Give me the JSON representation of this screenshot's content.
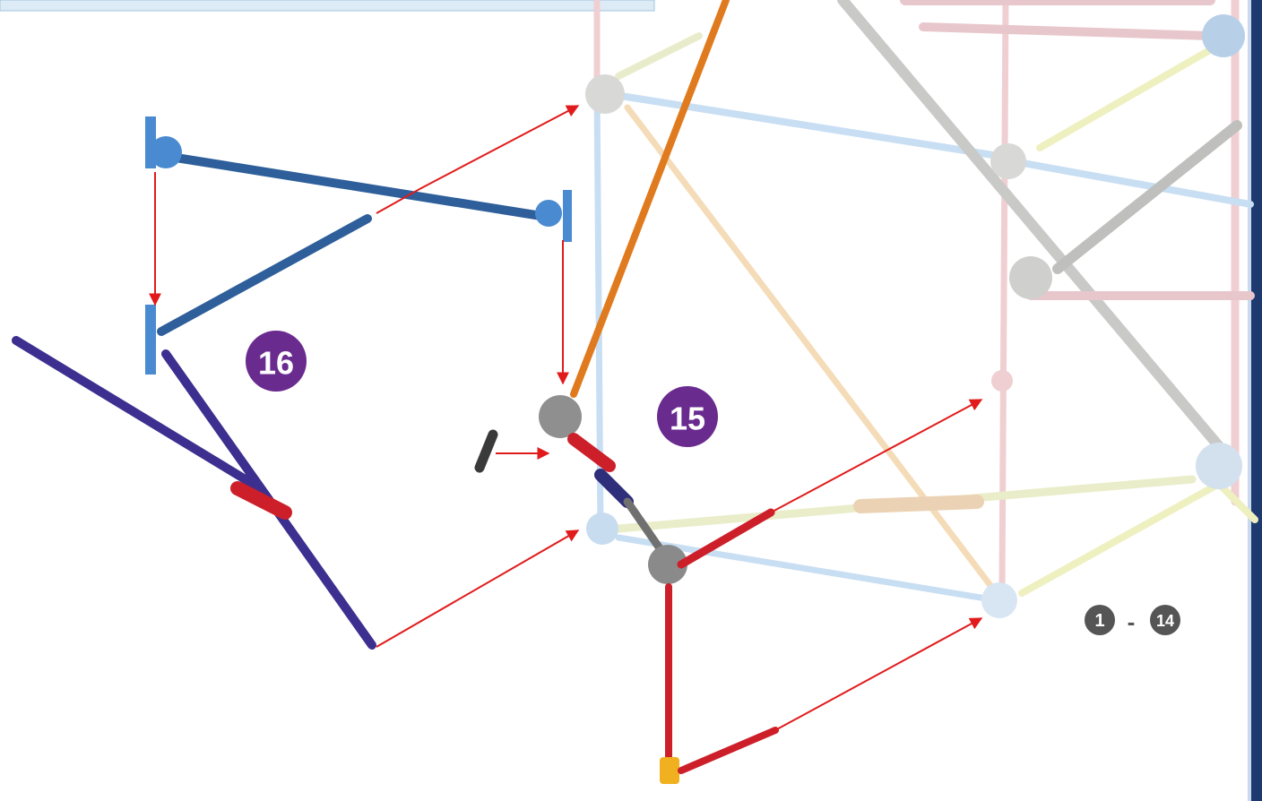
{
  "steps": [
    {
      "label": "16"
    },
    {
      "label": "15"
    }
  ],
  "previous_steps": {
    "from": "1",
    "separator": "-",
    "to": "14"
  }
}
